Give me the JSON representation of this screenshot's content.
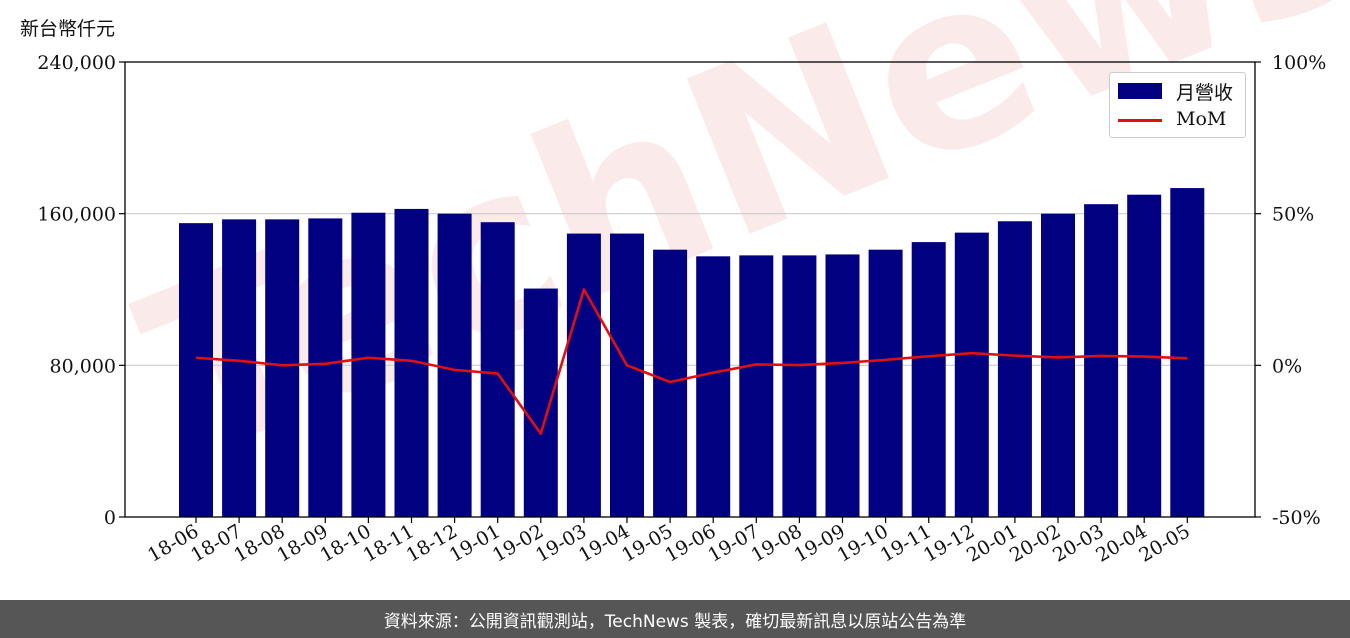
{
  "unit_label": "新台幣仟元",
  "watermark_text": "TechNews",
  "footer_text": "資料來源：公開資訊觀測站，TechNews 製表，確切最新訊息以原站公告為準",
  "colors": {
    "bar": "#000080",
    "line": "#e01010",
    "footer_bg": "#565656",
    "grid": "#cccccc"
  },
  "legend": {
    "bar_label": "月營收",
    "line_label": "MoM"
  },
  "chart_data": {
    "type": "bar",
    "categories": [
      "18-06",
      "18-07",
      "18-08",
      "18-09",
      "18-10",
      "18-11",
      "18-12",
      "19-01",
      "19-02",
      "19-03",
      "19-04",
      "19-05",
      "19-06",
      "19-07",
      "19-08",
      "19-09",
      "19-10",
      "19-11",
      "19-12",
      "20-01",
      "20-02",
      "20-03",
      "20-04",
      "20-05"
    ],
    "series": [
      {
        "name": "月營收",
        "axis": "left",
        "values": [
          155000,
          157000,
          157000,
          157500,
          160500,
          162500,
          160000,
          155500,
          120500,
          149500,
          149500,
          141000,
          137500,
          138000,
          138000,
          138500,
          141000,
          145000,
          150000,
          156000,
          160000,
          165000,
          170000,
          173500
        ]
      },
      {
        "name": "MoM",
        "axis": "right",
        "type": "line",
        "values": [
          2.5,
          1.5,
          0.0,
          0.5,
          2.5,
          1.5,
          -1.5,
          -2.7,
          -22.5,
          25.0,
          0.0,
          -5.5,
          -2.4,
          0.3,
          0.1,
          0.8,
          1.8,
          3.0,
          4.0,
          3.2,
          2.6,
          3.1,
          2.9,
          2.3
        ]
      }
    ],
    "left_axis": {
      "ylim": [
        0,
        240000
      ],
      "ticks": [
        "0",
        "80,000",
        "160,000",
        "240,000"
      ]
    },
    "right_axis": {
      "ylim": [
        -50,
        100
      ],
      "ticks": [
        "-50%",
        "0%",
        "50%",
        "100%"
      ]
    },
    "grid": true,
    "legend_position": "top-right"
  }
}
